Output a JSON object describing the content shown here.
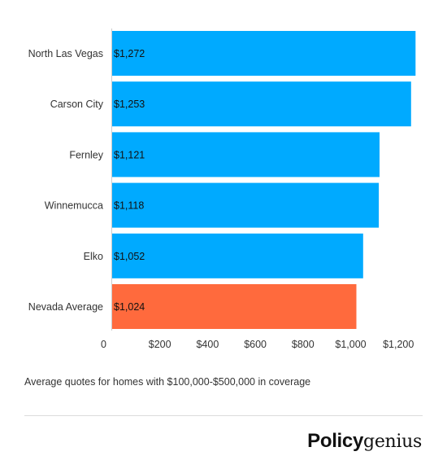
{
  "chart_data": {
    "type": "bar",
    "orientation": "horizontal",
    "categories": [
      "North Las Vegas",
      "Carson City",
      "Fernley",
      "Winnemucca",
      "Elko",
      "Nevada Average"
    ],
    "values": [
      1272,
      1253,
      1121,
      1118,
      1052,
      1024
    ],
    "value_labels": [
      "$1,272",
      "$1,253",
      "$1,121",
      "$1,118",
      "$1,052",
      "$1,024"
    ],
    "bar_colors": [
      "#00aaff",
      "#00aaff",
      "#00aaff",
      "#00aaff",
      "#00aaff",
      "#ff6a3d"
    ],
    "xticks": [
      0,
      200,
      400,
      600,
      800,
      1000,
      1200
    ],
    "xtick_labels": [
      "0",
      "$200",
      "$400",
      "$600",
      "$800",
      "$1,000",
      "$1,200"
    ],
    "xlim": [
      0,
      1272
    ],
    "grid": false,
    "legend": "none"
  },
  "caption": "Average quotes for homes with $100,000-$500,000 in coverage",
  "brand": {
    "part1": "Policy",
    "part2": "genius"
  }
}
